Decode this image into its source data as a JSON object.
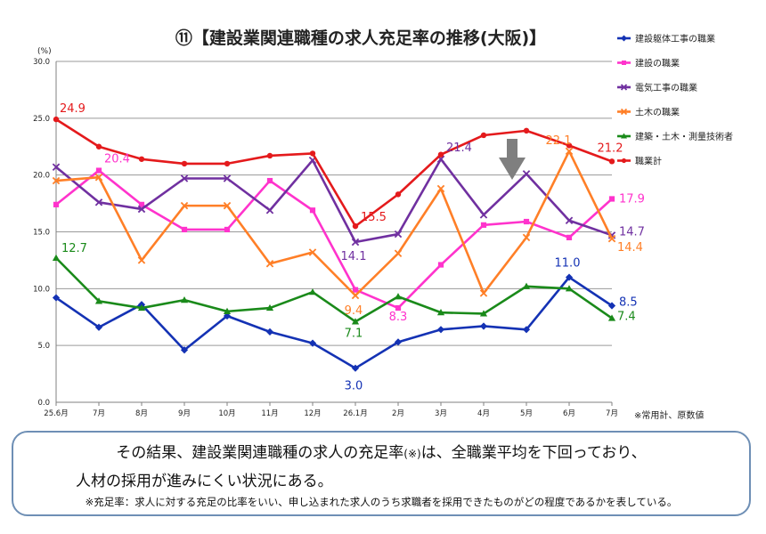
{
  "chart_data": {
    "type": "line",
    "title": "⑪【建設業関連職種の求人充足率の推移(大阪)】",
    "ylabel": "(%)",
    "ylim": [
      0,
      30
    ],
    "yticks": [
      "0.0",
      "5.0",
      "10.0",
      "15.0",
      "20.0",
      "25.0",
      "30.0"
    ],
    "categories": [
      "25.6月",
      "7月",
      "8月",
      "9月",
      "10月",
      "11月",
      "12月",
      "26.1月",
      "2月",
      "3月",
      "4月",
      "5月",
      "6月",
      "7月"
    ],
    "grid": true,
    "legend": "right",
    "note": "※常用計、原数値",
    "series": [
      {
        "name": "建設躯体工事の職業",
        "color": "#1432b4",
        "marker": "diamond",
        "values": [
          9.2,
          6.6,
          8.6,
          4.6,
          7.6,
          6.2,
          5.2,
          3.0,
          5.3,
          6.4,
          6.7,
          6.4,
          11.0,
          8.5
        ]
      },
      {
        "name": "建設の職業",
        "color": "#ff33cc",
        "marker": "square",
        "values": [
          17.4,
          20.4,
          17.4,
          15.2,
          15.2,
          19.5,
          16.9,
          9.9,
          8.3,
          12.1,
          15.6,
          15.9,
          14.5,
          17.9
        ]
      },
      {
        "name": "電気工事の職業",
        "color": "#7030a0",
        "marker": "x",
        "values": [
          20.7,
          17.6,
          17.0,
          19.7,
          19.7,
          16.9,
          21.3,
          14.1,
          14.8,
          21.4,
          16.5,
          20.1,
          16.0,
          14.7
        ]
      },
      {
        "name": "土木の職業",
        "color": "#ff7f27",
        "marker": "x",
        "values": [
          19.5,
          19.8,
          12.5,
          17.3,
          17.3,
          12.2,
          13.2,
          9.4,
          13.1,
          18.8,
          9.6,
          14.5,
          22.1,
          14.4
        ]
      },
      {
        "name": "建築・土木・測量技術者",
        "color": "#1a8a1a",
        "marker": "triangle",
        "values": [
          12.7,
          8.9,
          8.3,
          9.0,
          8.0,
          8.3,
          9.7,
          7.1,
          9.3,
          7.9,
          7.8,
          10.2,
          10.0,
          7.4
        ]
      },
      {
        "name": "職業計",
        "color": "#e41a1c",
        "marker": "dot",
        "values": [
          24.9,
          22.5,
          21.4,
          21.0,
          21.0,
          21.7,
          21.9,
          15.5,
          18.3,
          21.8,
          23.5,
          23.9,
          22.6,
          21.2
        ]
      }
    ],
    "data_labels": [
      {
        "series": 5,
        "index": 0,
        "text": "24.9"
      },
      {
        "series": 5,
        "index": 7,
        "text": "15.5"
      },
      {
        "series": 5,
        "index": 13,
        "text": "21.2"
      },
      {
        "series": 1,
        "index": 1,
        "text": "20.4"
      },
      {
        "series": 1,
        "index": 8,
        "text": "8.3"
      },
      {
        "series": 1,
        "index": 13,
        "text": "17.9"
      },
      {
        "series": 2,
        "index": 7,
        "text": "14.1"
      },
      {
        "series": 2,
        "index": 9,
        "text": "21.4"
      },
      {
        "series": 2,
        "index": 13,
        "text": "14.7"
      },
      {
        "series": 3,
        "index": 7,
        "text": "9.4"
      },
      {
        "series": 3,
        "index": 12,
        "text": "22.1"
      },
      {
        "series": 3,
        "index": 13,
        "text": "14.4"
      },
      {
        "series": 4,
        "index": 0,
        "text": "12.7"
      },
      {
        "series": 4,
        "index": 7,
        "text": "7.1"
      },
      {
        "series": 4,
        "index": 13,
        "text": "7.4"
      },
      {
        "series": 0,
        "index": 7,
        "text": "3.0"
      },
      {
        "series": 0,
        "index": 12,
        "text": "11.0"
      },
      {
        "series": 0,
        "index": 13,
        "text": "8.5"
      }
    ],
    "arrow_marker": {
      "category": "5月",
      "color": "#7f7f7f"
    }
  },
  "summary": {
    "line1_a": "その結果、建設業関連職種の求人の充足率",
    "line1_mark": "(※)",
    "line1_b": "は、全職業平均を下回っており、",
    "line2": "人材の採用が進みにくい状況にある。",
    "footnote": "※充足率：求人に対する充足の比率をいい、申し込まれた求人のうち求職者を採用できたものがどの程度であるかを表している。"
  }
}
